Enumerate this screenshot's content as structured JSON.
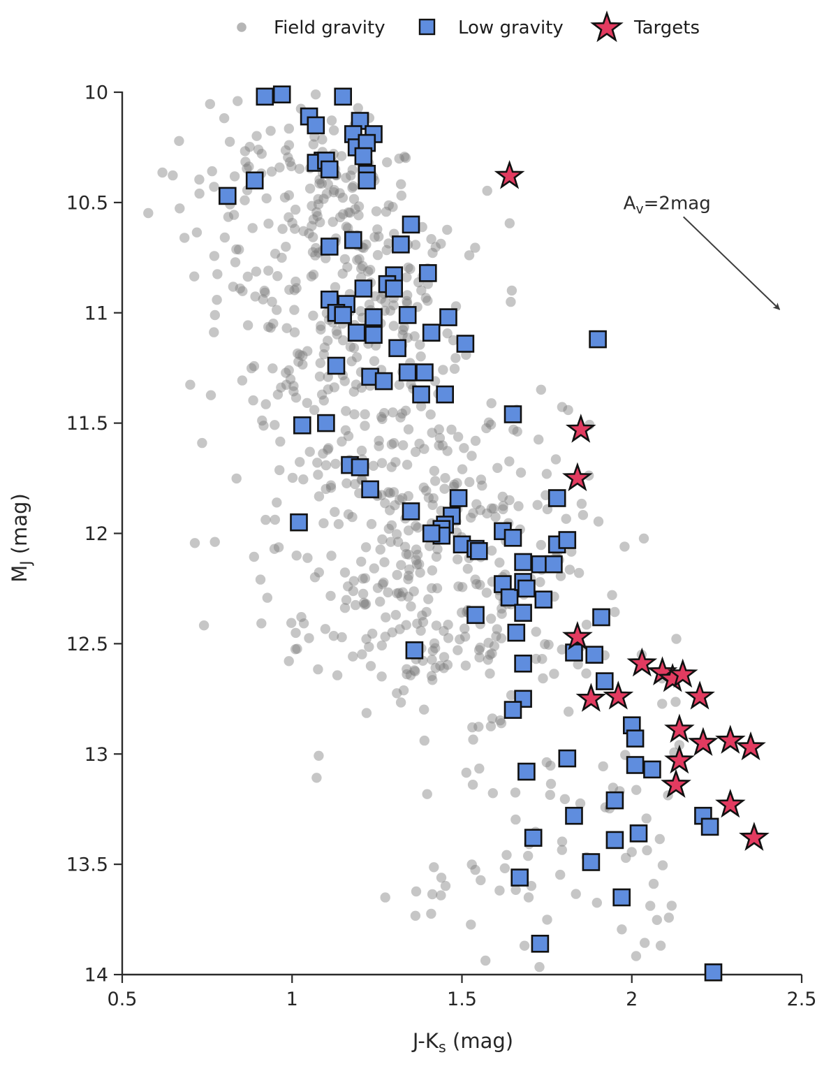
{
  "chart_data": {
    "type": "scatter",
    "title": "",
    "xlabel_plain": "J-Ks (mag)",
    "ylabel_plain": "MJ (mag)",
    "axes": {
      "xlim": [
        0.5,
        2.5
      ],
      "ylim": [
        14,
        10
      ],
      "y_inverted": true,
      "grid": false,
      "xlabel": {
        "main": "J-K",
        "sub": "s",
        "rest": " (mag)"
      },
      "ylabel": {
        "main": "M",
        "sub": "J",
        "rest": " (mag)"
      },
      "xticks": {
        "values": [
          0.5,
          1,
          1.5,
          2,
          2.5
        ],
        "labels": [
          "0.5",
          "1",
          "1.5",
          "2",
          "2.5"
        ]
      },
      "yticks": {
        "values": [
          10,
          10.5,
          11,
          11.5,
          12,
          12.5,
          13,
          13.5,
          14
        ],
        "labels": [
          "10",
          "10.5",
          "11",
          "11.5",
          "12",
          "12.5",
          "13",
          "13.5",
          "14"
        ]
      }
    },
    "legend": {
      "position": "top",
      "items": [
        {
          "label": "Field gravity",
          "marker": "circle",
          "color": "#bdbdbd"
        },
        {
          "label": "Low gravity",
          "marker": "square",
          "color": "#5f8dde"
        },
        {
          "label": "Targets",
          "marker": "star",
          "color": "#e23b60"
        }
      ]
    },
    "annotation": {
      "main": "A",
      "sub": "v",
      "rest": "=2mag",
      "text_pos": [
        1.975,
        10.53
      ],
      "arrow_from": [
        2.152,
        10.565
      ],
      "arrow_to": [
        2.435,
        10.985
      ]
    },
    "series": [
      {
        "name": "Field gravity",
        "marker": "circle",
        "color": "#787878",
        "opacity": 0.42,
        "approximate_distribution": true,
        "generator": {
          "count": 820,
          "seed": 42,
          "dense_fraction": 0.6,
          "dense_band": [
            10.2,
            2.45
          ],
          "ridge": [
            1.03,
            0.15,
            0.012
          ],
          "sigma_left": [
            0.2,
            0.02
          ],
          "sigma_right": [
            0.13,
            0.055
          ],
          "x_clamp": [
            0.55,
            2.16
          ],
          "y_clamp": [
            10.01,
            13.99
          ]
        }
      },
      {
        "name": "Low gravity",
        "marker": "square",
        "color": "#5f8dde",
        "points": [
          [
            0.92,
            10.02
          ],
          [
            0.97,
            10.01
          ],
          [
            1.15,
            10.02
          ],
          [
            1.05,
            10.11
          ],
          [
            1.07,
            10.15
          ],
          [
            1.2,
            10.13
          ],
          [
            1.18,
            10.19
          ],
          [
            1.24,
            10.19
          ],
          [
            1.19,
            10.25
          ],
          [
            1.22,
            10.23
          ],
          [
            1.21,
            10.29
          ],
          [
            1.09,
            10.31
          ],
          [
            1.07,
            10.32
          ],
          [
            1.1,
            10.31
          ],
          [
            1.11,
            10.35
          ],
          [
            1.22,
            10.37
          ],
          [
            1.22,
            10.4
          ],
          [
            0.89,
            10.4
          ],
          [
            0.81,
            10.47
          ],
          [
            1.35,
            10.6
          ],
          [
            1.18,
            10.67
          ],
          [
            1.32,
            10.69
          ],
          [
            1.11,
            10.7
          ],
          [
            1.3,
            10.83
          ],
          [
            1.4,
            10.82
          ],
          [
            1.21,
            10.89
          ],
          [
            1.28,
            10.87
          ],
          [
            1.3,
            10.89
          ],
          [
            1.11,
            10.94
          ],
          [
            1.16,
            10.96
          ],
          [
            1.13,
            11.0
          ],
          [
            1.15,
            11.01
          ],
          [
            1.24,
            11.02
          ],
          [
            1.34,
            11.01
          ],
          [
            1.46,
            11.02
          ],
          [
            1.19,
            11.09
          ],
          [
            1.24,
            11.1
          ],
          [
            1.41,
            11.09
          ],
          [
            1.51,
            11.14
          ],
          [
            1.31,
            11.16
          ],
          [
            1.9,
            11.12
          ],
          [
            1.13,
            11.24
          ],
          [
            1.23,
            11.29
          ],
          [
            1.27,
            11.31
          ],
          [
            1.34,
            11.27
          ],
          [
            1.39,
            11.27
          ],
          [
            1.38,
            11.37
          ],
          [
            1.45,
            11.37
          ],
          [
            1.65,
            11.46
          ],
          [
            1.03,
            11.51
          ],
          [
            1.1,
            11.5
          ],
          [
            1.17,
            11.69
          ],
          [
            1.2,
            11.7
          ],
          [
            1.23,
            11.8
          ],
          [
            1.02,
            11.95
          ],
          [
            1.35,
            11.9
          ],
          [
            1.49,
            11.84
          ],
          [
            1.78,
            11.84
          ],
          [
            1.47,
            11.92
          ],
          [
            1.45,
            11.96
          ],
          [
            1.44,
            11.98
          ],
          [
            1.44,
            12.01
          ],
          [
            1.41,
            12.0
          ],
          [
            1.5,
            12.05
          ],
          [
            1.54,
            12.07
          ],
          [
            1.55,
            12.08
          ],
          [
            1.62,
            11.99
          ],
          [
            1.65,
            12.02
          ],
          [
            1.78,
            12.05
          ],
          [
            1.81,
            12.03
          ],
          [
            1.68,
            12.13
          ],
          [
            1.73,
            12.14
          ],
          [
            1.77,
            12.14
          ],
          [
            1.62,
            12.23
          ],
          [
            1.64,
            12.29
          ],
          [
            1.68,
            12.22
          ],
          [
            1.69,
            12.25
          ],
          [
            1.74,
            12.3
          ],
          [
            1.54,
            12.37
          ],
          [
            1.68,
            12.36
          ],
          [
            1.66,
            12.45
          ],
          [
            1.91,
            12.38
          ],
          [
            1.36,
            12.53
          ],
          [
            1.68,
            12.59
          ],
          [
            1.83,
            12.54
          ],
          [
            1.89,
            12.55
          ],
          [
            1.92,
            12.67
          ],
          [
            1.68,
            12.75
          ],
          [
            1.65,
            12.8
          ],
          [
            2.0,
            12.87
          ],
          [
            2.01,
            12.93
          ],
          [
            1.81,
            13.02
          ],
          [
            2.01,
            13.05
          ],
          [
            2.06,
            13.07
          ],
          [
            1.69,
            13.08
          ],
          [
            1.95,
            13.21
          ],
          [
            1.83,
            13.28
          ],
          [
            2.21,
            13.28
          ],
          [
            2.23,
            13.33
          ],
          [
            1.71,
            13.38
          ],
          [
            1.95,
            13.39
          ],
          [
            2.02,
            13.36
          ],
          [
            1.88,
            13.49
          ],
          [
            1.67,
            13.56
          ],
          [
            1.97,
            13.65
          ],
          [
            1.73,
            13.86
          ],
          [
            2.24,
            13.99
          ]
        ]
      },
      {
        "name": "Targets",
        "marker": "star",
        "color": "#e23b60",
        "points": [
          [
            1.64,
            10.38
          ],
          [
            1.85,
            11.53
          ],
          [
            1.84,
            11.75
          ],
          [
            1.84,
            12.47
          ],
          [
            2.03,
            12.59
          ],
          [
            2.09,
            12.63
          ],
          [
            2.12,
            12.66
          ],
          [
            2.15,
            12.64
          ],
          [
            2.2,
            12.74
          ],
          [
            1.88,
            12.75
          ],
          [
            1.96,
            12.74
          ],
          [
            2.14,
            12.89
          ],
          [
            2.21,
            12.95
          ],
          [
            2.29,
            12.94
          ],
          [
            2.35,
            12.97
          ],
          [
            2.14,
            13.03
          ],
          [
            2.13,
            13.14
          ],
          [
            2.29,
            13.23
          ],
          [
            2.36,
            13.38
          ]
        ]
      }
    ],
    "colors": {
      "axis": "#2a2a2a",
      "text": "#262626",
      "field": "#787878",
      "low_gravity_fill": "#5f8dde",
      "target_fill": "#e23b60",
      "marker_stroke": "#111111",
      "arrow": "#3d3d3d"
    }
  }
}
